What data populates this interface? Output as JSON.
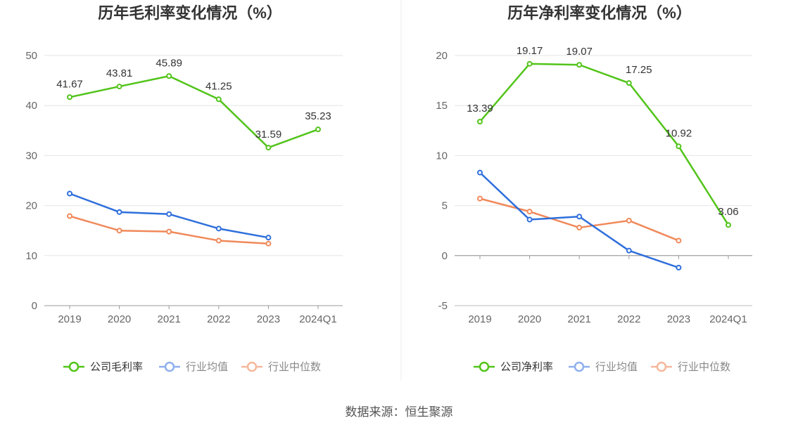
{
  "source_text": "数据来源：恒生聚源",
  "chart_data": [
    {
      "type": "line",
      "title": "历年毛利率变化情况（%）",
      "categories": [
        "2019",
        "2020",
        "2021",
        "2022",
        "2023",
        "2024Q1"
      ],
      "ylim": [
        0,
        50
      ],
      "yticks": [
        0,
        10,
        20,
        30,
        40,
        50
      ],
      "grid": true,
      "legend_position": "bottom-center",
      "series": [
        {
          "name": "公司毛利率",
          "color": "#52c41a",
          "labels": true,
          "values": [
            41.67,
            43.81,
            45.89,
            41.25,
            31.59,
            35.23
          ]
        },
        {
          "name": "行业均值",
          "color": "#2f6fdb",
          "legend_color": "#8fb0ee",
          "labels": false,
          "values": [
            22.4,
            18.7,
            18.3,
            15.4,
            13.6,
            null
          ]
        },
        {
          "name": "行业中位数",
          "color": "#f0895a",
          "legend_color": "#f5b89c",
          "labels": false,
          "values": [
            17.9,
            15.0,
            14.8,
            13.0,
            12.4,
            null
          ]
        }
      ]
    },
    {
      "type": "line",
      "title": "历年净利率变化情况（%）",
      "categories": [
        "2019",
        "2020",
        "2021",
        "2022",
        "2023",
        "2024Q1"
      ],
      "ylim": [
        -5,
        20
      ],
      "yticks": [
        -5,
        0,
        5,
        10,
        15,
        20
      ],
      "grid": true,
      "legend_position": "bottom-center",
      "series": [
        {
          "name": "公司净利率",
          "color": "#52c41a",
          "labels": true,
          "values": [
            13.39,
            19.17,
            19.07,
            17.25,
            10.92,
            3.06
          ]
        },
        {
          "name": "行业均值",
          "color": "#2f6fdb",
          "legend_color": "#8fb0ee",
          "labels": false,
          "values": [
            8.3,
            3.6,
            3.9,
            0.5,
            -1.2,
            null
          ]
        },
        {
          "name": "行业中位数",
          "color": "#f0895a",
          "legend_color": "#f5b89c",
          "labels": false,
          "values": [
            5.7,
            4.4,
            2.8,
            3.5,
            1.5,
            null
          ]
        }
      ]
    }
  ]
}
